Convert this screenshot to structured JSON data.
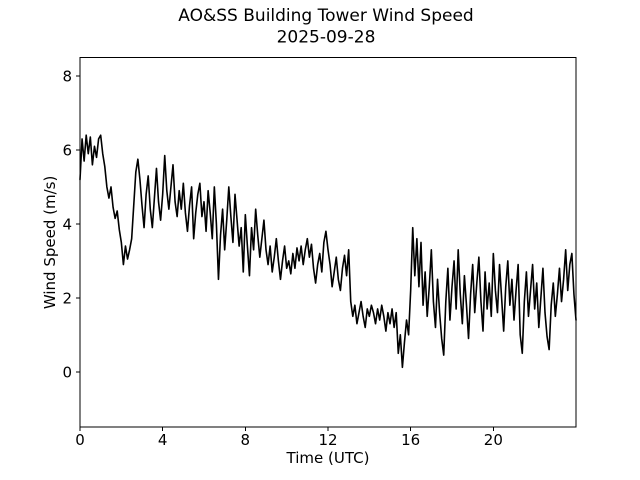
{
  "figure": {
    "title_line1": "AO&SS Building Tower Wind Speed",
    "title_line2": "2025-09-28",
    "background_color": "#ffffff"
  },
  "chart_data": {
    "type": "line",
    "title": "AO&SS Building Tower Wind Speed",
    "subtitle": "2025-09-28",
    "xlabel": "Time (UTC)",
    "ylabel": "Wind Speed (m/s)",
    "xlim": [
      0,
      24
    ],
    "ylim": [
      -1.5,
      8.5
    ],
    "xticks": [
      0,
      4,
      8,
      12,
      16,
      20
    ],
    "yticks": [
      0,
      2,
      4,
      6,
      8
    ],
    "grid": false,
    "legend": false,
    "line_color": "#000000",
    "series": [
      {
        "name": "wind_speed_mps",
        "color": "#000000",
        "x_start": 0.0,
        "x_step": 0.1,
        "values": [
          5.2,
          6.3,
          5.7,
          6.4,
          5.9,
          6.35,
          5.6,
          6.1,
          5.8,
          6.3,
          6.4,
          5.9,
          5.55,
          5.0,
          4.7,
          5.0,
          4.45,
          4.15,
          4.35,
          3.85,
          3.5,
          2.9,
          3.4,
          3.05,
          3.3,
          3.6,
          4.5,
          5.4,
          5.75,
          5.2,
          4.5,
          3.9,
          4.8,
          5.3,
          4.4,
          3.9,
          4.7,
          5.5,
          4.6,
          4.1,
          4.8,
          5.85,
          4.9,
          4.4,
          5.0,
          5.6,
          4.6,
          4.2,
          4.9,
          4.4,
          5.1,
          4.3,
          3.8,
          4.5,
          5.0,
          3.6,
          4.3,
          4.8,
          5.1,
          4.2,
          4.6,
          3.8,
          4.9,
          4.3,
          3.6,
          5.0,
          4.0,
          2.5,
          3.7,
          4.4,
          3.3,
          4.1,
          5.0,
          4.2,
          3.5,
          4.8,
          4.1,
          3.4,
          3.9,
          2.7,
          4.25,
          3.4,
          2.6,
          3.9,
          3.3,
          4.4,
          3.7,
          3.1,
          3.6,
          4.1,
          3.3,
          2.9,
          3.4,
          2.7,
          3.1,
          3.6,
          3.0,
          2.5,
          3.0,
          3.4,
          2.8,
          3.0,
          2.65,
          3.2,
          2.8,
          3.35,
          3.0,
          3.4,
          2.9,
          3.3,
          3.6,
          3.1,
          3.45,
          2.8,
          2.4,
          2.9,
          3.2,
          2.7,
          3.5,
          3.8,
          3.3,
          2.9,
          2.3,
          2.7,
          3.1,
          2.5,
          2.2,
          2.8,
          3.15,
          2.6,
          3.3,
          1.9,
          1.5,
          1.8,
          1.3,
          1.6,
          1.9,
          1.5,
          1.2,
          1.7,
          1.5,
          1.8,
          1.6,
          1.3,
          1.7,
          1.4,
          1.8,
          1.5,
          1.1,
          1.6,
          1.3,
          1.7,
          1.2,
          1.6,
          0.5,
          1.0,
          0.12,
          0.8,
          1.4,
          1.0,
          2.2,
          3.9,
          2.6,
          3.6,
          2.3,
          3.5,
          1.8,
          2.7,
          1.5,
          2.3,
          3.3,
          1.9,
          1.2,
          2.5,
          1.6,
          0.9,
          0.45,
          1.9,
          2.8,
          1.4,
          2.3,
          3.0,
          1.7,
          3.3,
          2.1,
          1.3,
          2.6,
          1.8,
          0.9,
          2.1,
          2.9,
          1.6,
          2.4,
          3.1,
          1.9,
          1.1,
          2.7,
          1.7,
          2.4,
          1.5,
          3.2,
          2.2,
          1.6,
          2.9,
          2.0,
          1.1,
          2.3,
          3.0,
          1.8,
          2.5,
          1.4,
          2.2,
          2.9,
          1.0,
          0.5,
          1.9,
          2.7,
          1.5,
          2.2,
          2.9,
          1.7,
          2.4,
          1.2,
          2.0,
          2.8,
          1.6,
          0.95,
          0.6,
          1.8,
          2.4,
          1.5,
          2.1,
          2.8,
          1.9,
          2.5,
          3.3,
          2.2,
          2.9,
          3.2,
          2.1,
          1.4
        ]
      }
    ]
  }
}
